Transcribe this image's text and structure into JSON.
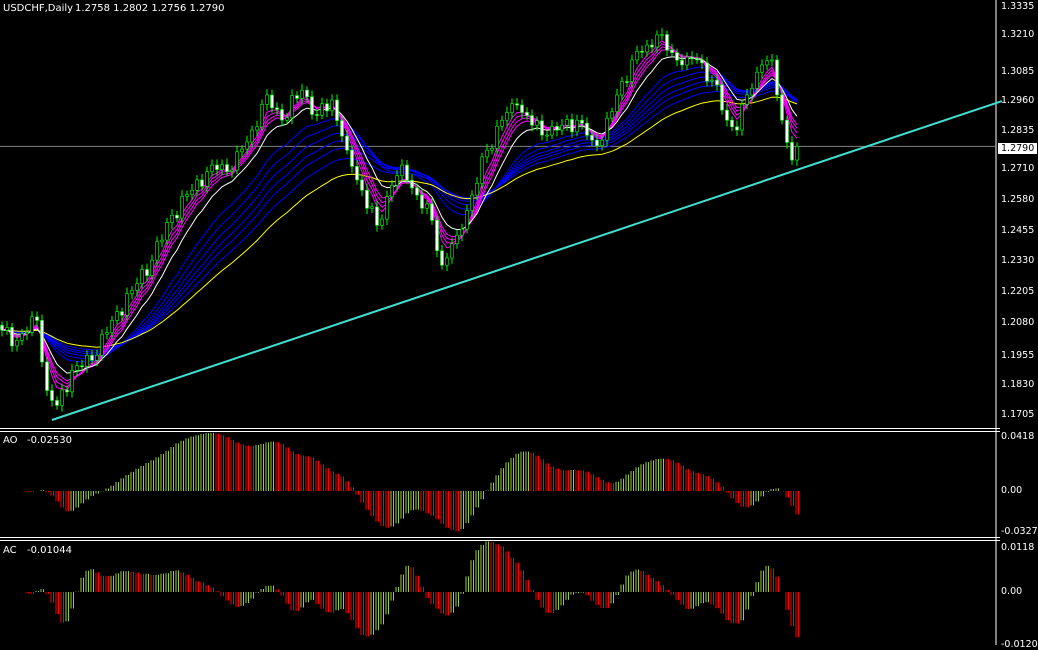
{
  "main_pane": {
    "symbol_label": "USDCHF,Daily",
    "ohlc_label": "1.2758 1.2802 1.2756 1.2790",
    "axis_labels": [
      "1.3335",
      "1.3210",
      "1.3085",
      "1.2960",
      "1.2835",
      "1.2710",
      "1.2580",
      "1.2455",
      "1.2330",
      "1.2205",
      "1.2080",
      "1.1955",
      "1.1830",
      "1.1705"
    ],
    "current_price_tag": "1.2790"
  },
  "ao_pane": {
    "label": "AO",
    "value": "-0.02530",
    "axis_labels": [
      "0.0418",
      "0.00",
      "-0.0327"
    ]
  },
  "ac_pane": {
    "label": "AC",
    "value": "-0.01044",
    "axis_labels": [
      "0.0118",
      "0.00",
      "-0.0120"
    ]
  },
  "colors": {
    "background": "#000000",
    "bull": "#00ff00",
    "bear": "#ffffff",
    "trendline": "#40e0d0",
    "ma_blue": "#0000ff",
    "ma_yellow": "#ffff00",
    "ma_magenta": "#ff00ff",
    "ao_up": "#9acd32",
    "ao_down": "#ff0000",
    "grid_line": "#808080"
  },
  "chart_data": {
    "type": "candlestick",
    "symbol": "USDCHF",
    "timeframe": "Daily",
    "ylim": [
      1.1705,
      1.3335
    ],
    "close_path": [
      [
        0,
        1.2061
      ],
      [
        3,
        1.2021
      ],
      [
        7,
        1.21
      ],
      [
        9,
        1.1822
      ],
      [
        11,
        1.1763
      ],
      [
        14,
        1.1902
      ],
      [
        18,
        1.1942
      ],
      [
        22,
        1.21
      ],
      [
        26,
        1.2219
      ],
      [
        30,
        1.2339
      ],
      [
        34,
        1.2517
      ],
      [
        38,
        1.2616
      ],
      [
        42,
        1.2716
      ],
      [
        46,
        1.2696
      ],
      [
        50,
        1.2855
      ],
      [
        53,
        1.2994
      ],
      [
        56,
        1.2894
      ],
      [
        60,
        1.3013
      ],
      [
        63,
        1.2914
      ],
      [
        66,
        1.2974
      ],
      [
        69,
        1.2775
      ],
      [
        72,
        1.2616
      ],
      [
        75,
        1.2477
      ],
      [
        78,
        1.2636
      ],
      [
        80,
        1.2716
      ],
      [
        83,
        1.2597
      ],
      [
        86,
        1.2497
      ],
      [
        88,
        1.2319
      ],
      [
        91,
        1.2438
      ],
      [
        94,
        1.2597
      ],
      [
        97,
        1.2775
      ],
      [
        100,
        1.2894
      ],
      [
        103,
        1.2954
      ],
      [
        106,
        1.2874
      ],
      [
        109,
        1.2835
      ],
      [
        112,
        1.2874
      ],
      [
        115,
        1.2894
      ],
      [
        118,
        1.2815
      ],
      [
        120,
        1.2815
      ],
      [
        123,
        1.2994
      ],
      [
        126,
        1.3133
      ],
      [
        129,
        1.3192
      ],
      [
        131,
        1.3232
      ],
      [
        133,
        1.3172
      ],
      [
        136,
        1.3113
      ],
      [
        139,
        1.3133
      ],
      [
        142,
        1.3053
      ],
      [
        145,
        1.2894
      ],
      [
        147,
        1.2855
      ],
      [
        149,
        1.2994
      ],
      [
        152,
        1.3113
      ],
      [
        154,
        1.3133
      ],
      [
        156,
        1.2894
      ],
      [
        158,
        1.2736
      ],
      [
        159,
        1.279
      ]
    ],
    "trendline": [
      [
        10,
        1.1705
      ],
      [
        200,
        1.297
      ]
    ],
    "current_price": 1.279
  }
}
